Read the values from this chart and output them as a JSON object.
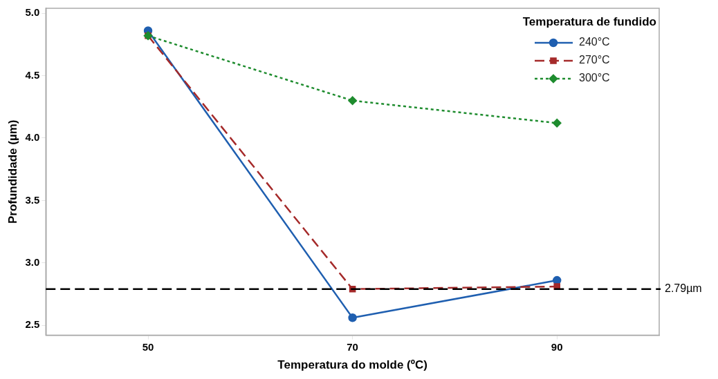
{
  "chart_data": {
    "type": "line",
    "xlabel": "Temperatura do molde (ºC)",
    "ylabel": "Profundidade (µm)",
    "legend_title": "Temperatura de fundido",
    "legend": "top right",
    "grid": false,
    "x": [
      50,
      70,
      90
    ],
    "xlim": [
      40,
      100
    ],
    "xticks": [
      50,
      70,
      90
    ],
    "ylim": [
      2.42,
      5.04
    ],
    "yticks": [
      2.5,
      {
        "value": 3,
        "label": "3.0"
      },
      3.5,
      {
        "value": 4,
        "label": "4.0"
      },
      4.5,
      {
        "value": 5,
        "label": "5.0"
      }
    ],
    "series": [
      {
        "name": "240°C",
        "color": "#1f5fb0",
        "values": [
          4.86,
          2.56,
          2.86
        ],
        "marker": "circle",
        "line_style": "solid"
      },
      {
        "name": "270°C",
        "color": "#a52a2a",
        "values": [
          4.82,
          2.79,
          2.81
        ],
        "marker": "square",
        "line_style": "dashed"
      },
      {
        "name": "300°C",
        "color": "#1e8c2e",
        "values": [
          4.82,
          4.3,
          4.12
        ],
        "marker": "diamond",
        "line_style": "dotted"
      }
    ],
    "ref_lines": [
      {
        "axis": "y",
        "value": 2.79,
        "label": "2.79µm",
        "color": "#000000",
        "line_style": "dashed"
      }
    ]
  }
}
